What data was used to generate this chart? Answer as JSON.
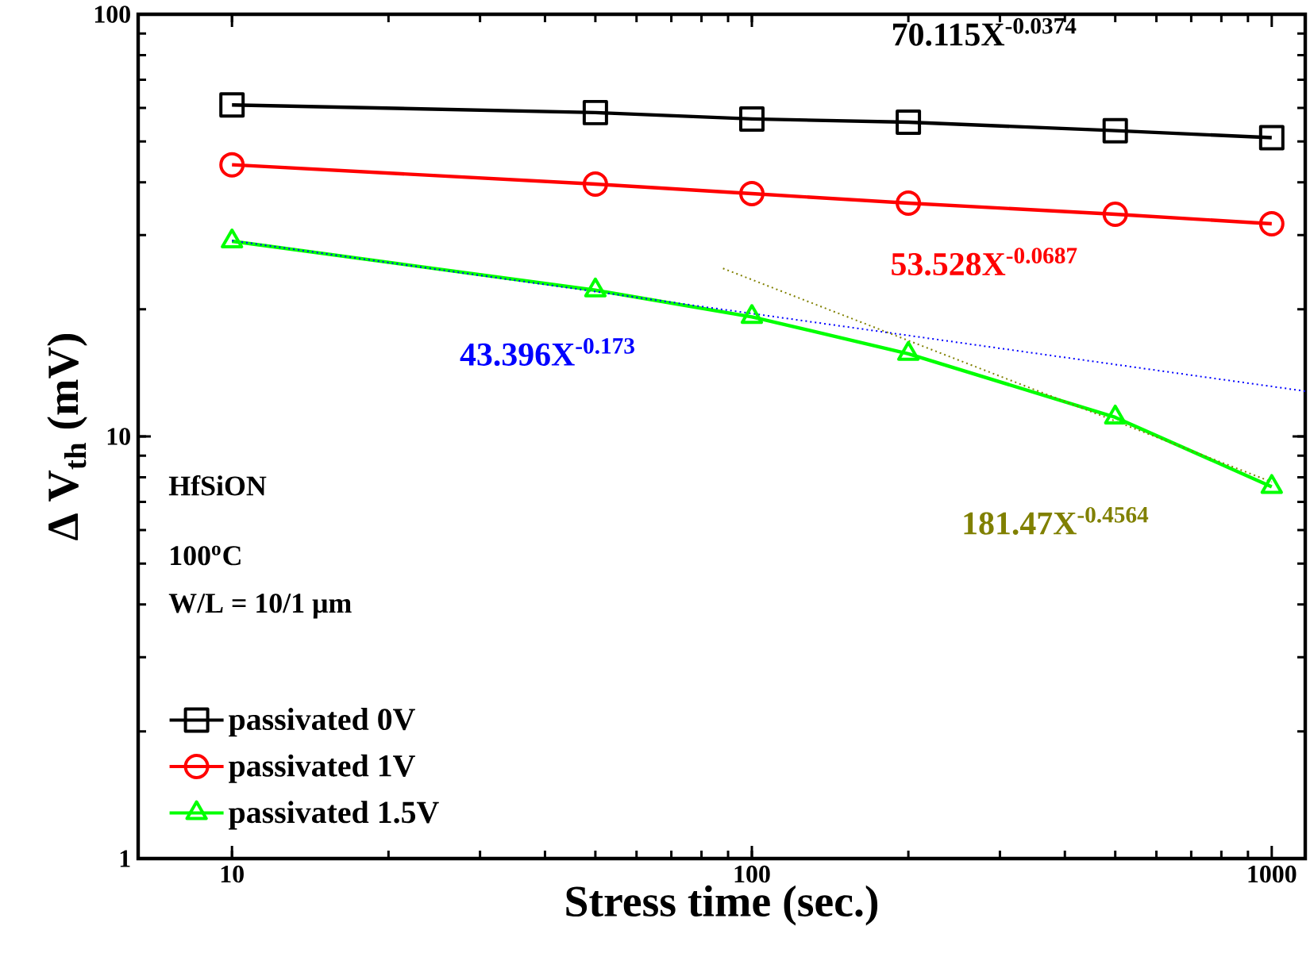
{
  "chart_data": {
    "type": "line",
    "xlabel": "Stress time (sec.)",
    "ylabel": "Δ V$_{th}$ (mV)",
    "log": "xy",
    "xlim": [
      6.6,
      1160
    ],
    "ylim": [
      1,
      100
    ],
    "xticks": [
      10,
      100,
      1000
    ],
    "yticks": [
      1,
      10,
      100
    ],
    "legend": "bottom left",
    "series": [
      {
        "name": "passivated   0V",
        "color": "#000000",
        "marker": "square",
        "x": [
          10,
          50,
          100,
          200,
          500,
          1000
        ],
        "values": [
          61,
          58.5,
          56.5,
          55.5,
          53,
          51
        ]
      },
      {
        "name": "passivated   1V",
        "color": "#ff0000",
        "marker": "circle",
        "x": [
          10,
          50,
          100,
          200,
          500,
          1000
        ],
        "values": [
          44,
          39.6,
          37.6,
          35.7,
          33.6,
          31.9
        ]
      },
      {
        "name": "passivated 1.5V",
        "color": "#00ff00",
        "marker": "triangle",
        "x": [
          10,
          50,
          100,
          200,
          500,
          1000
        ],
        "values": [
          29,
          22.2,
          19.2,
          15.7,
          11.1,
          7.6
        ]
      },
      {
        "color": "#0000ff",
        "marker": "none",
        "line_style": "dotted",
        "x": [
          10,
          1160
        ],
        "values": [
          29.1,
          12.8
        ]
      },
      {
        "color": "#808000",
        "marker": "none",
        "line_style": "dotted",
        "x": [
          88,
          1000
        ],
        "values": [
          25,
          7.8
        ]
      }
    ],
    "annotations": [
      "70.115X$^{-0.0374}$",
      "53.528X$^{-0.0687}$",
      "43.396X$^{-0.173}$",
      "181.47X$^{-0.4564}$",
      "HfSiON",
      "100$^{o}$C",
      "W/L = 10/1 μm"
    ]
  }
}
